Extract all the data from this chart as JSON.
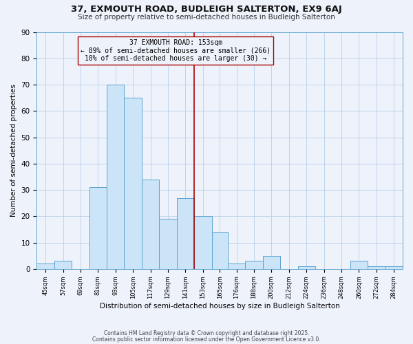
{
  "title": "37, EXMOUTH ROAD, BUDLEIGH SALTERTON, EX9 6AJ",
  "subtitle": "Size of property relative to semi-detached houses in Budleigh Salterton",
  "xlabel": "Distribution of semi-detached houses by size in Budleigh Salterton",
  "ylabel": "Number of semi-detached properties",
  "bin_labels": [
    "45sqm",
    "57sqm",
    "69sqm",
    "81sqm",
    "93sqm",
    "105sqm",
    "117sqm",
    "129sqm",
    "141sqm",
    "153sqm",
    "165sqm",
    "176sqm",
    "188sqm",
    "200sqm",
    "212sqm",
    "224sqm",
    "236sqm",
    "248sqm",
    "260sqm",
    "272sqm",
    "284sqm"
  ],
  "bin_edges": [
    45,
    57,
    69,
    81,
    93,
    105,
    117,
    129,
    141,
    153,
    165,
    176,
    188,
    200,
    212,
    224,
    236,
    248,
    260,
    272,
    284,
    296
  ],
  "counts": [
    2,
    3,
    0,
    31,
    70,
    65,
    34,
    19,
    27,
    20,
    14,
    2,
    3,
    5,
    0,
    1,
    0,
    0,
    3,
    1,
    1
  ],
  "bar_facecolor": "#cce4f7",
  "bar_edgecolor": "#5ba3d0",
  "grid_color": "#b8d0e8",
  "bg_color": "#eef2fb",
  "vline_x": 153,
  "vline_color": "#aa0000",
  "annotation_title": "37 EXMOUTH ROAD: 153sqm",
  "annotation_line1": "← 89% of semi-detached houses are smaller (266)",
  "annotation_line2": "10% of semi-detached houses are larger (30) →",
  "annotation_box_edgecolor": "#aa0000",
  "annotation_box_facecolor": "#eef2fb",
  "ylim": [
    0,
    90
  ],
  "yticks": [
    0,
    10,
    20,
    30,
    40,
    50,
    60,
    70,
    80,
    90
  ],
  "footnote1": "Contains HM Land Registry data © Crown copyright and database right 2025.",
  "footnote2": "Contains public sector information licensed under the Open Government Licence v3.0."
}
